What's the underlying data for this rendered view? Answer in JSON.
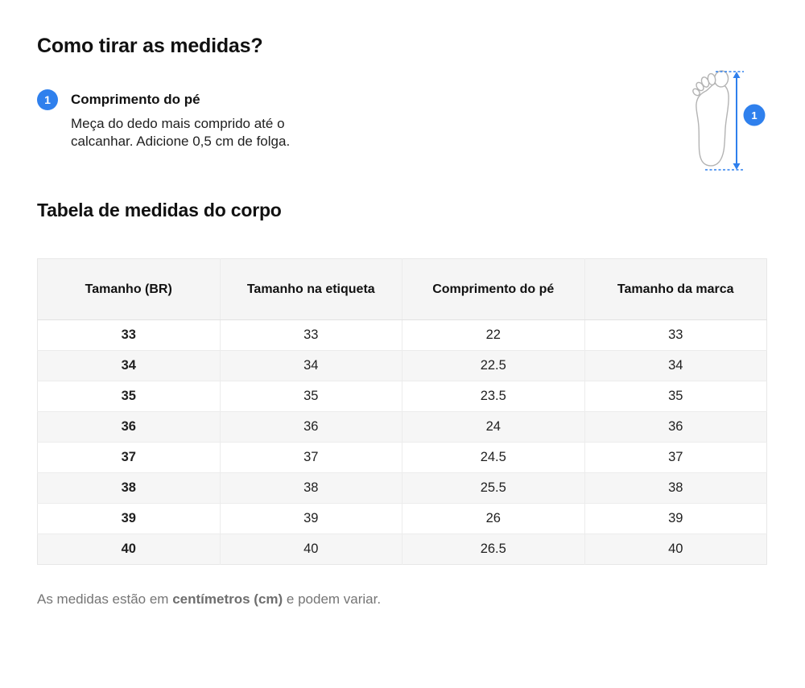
{
  "page": {
    "title": "Como tirar as medidas?",
    "section_title": "Tabela de medidas do corpo"
  },
  "instruction": {
    "number": "1",
    "title": "Comprimento do pé",
    "description": "Meça do dedo mais comprido até o calcanhar. Adicione 0,5 cm de folga."
  },
  "diagram": {
    "icon": "foot-length-measure-icon",
    "badge_number": "1"
  },
  "table": {
    "headers": [
      "Tamanho (BR)",
      "Tamanho na etiqueta",
      "Comprimento do pé",
      "Tamanho da marca"
    ],
    "rows": [
      [
        "33",
        "33",
        "22",
        "33"
      ],
      [
        "34",
        "34",
        "22.5",
        "34"
      ],
      [
        "35",
        "35",
        "23.5",
        "35"
      ],
      [
        "36",
        "36",
        "24",
        "36"
      ],
      [
        "37",
        "37",
        "24.5",
        "37"
      ],
      [
        "38",
        "38",
        "25.5",
        "38"
      ],
      [
        "39",
        "39",
        "26",
        "39"
      ],
      [
        "40",
        "40",
        "26.5",
        "40"
      ]
    ]
  },
  "footer": {
    "prefix": "As medidas estão em ",
    "bold": "centímetros (cm)",
    "suffix": " e podem variar."
  },
  "colors": {
    "accent_blue": "#2f80ed",
    "foot_outline_gray": "#b3b3b3",
    "table_header_bg": "#f5f5f5",
    "zebra_row_bg": "#f6f6f6",
    "table_border": "#ececec",
    "muted_text": "#757575",
    "heading_text": "#111111"
  }
}
